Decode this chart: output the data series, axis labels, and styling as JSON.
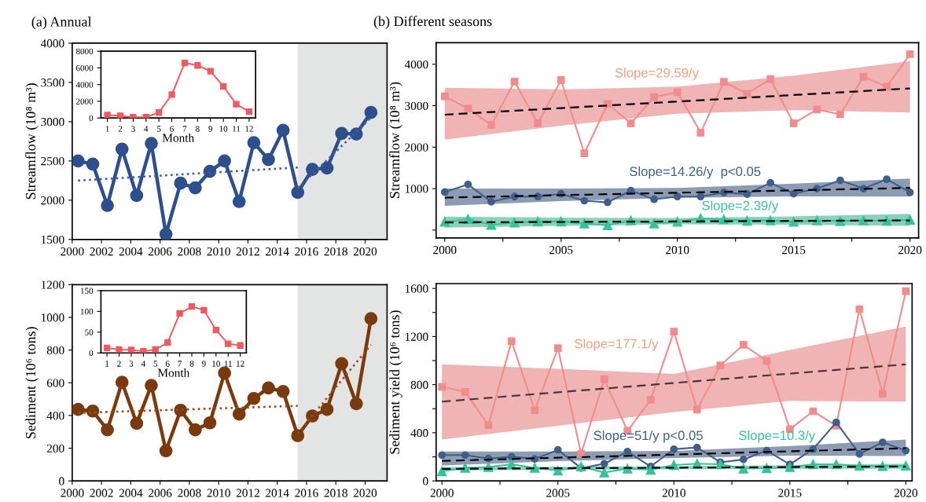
{
  "chart_data": [
    {
      "type": "line",
      "title": "(a) Annual",
      "ylabel": "Streamflow (10⁸ m³)",
      "x": [
        2000,
        2001,
        2002,
        2003,
        2004,
        2005,
        2006,
        2007,
        2008,
        2009,
        2010,
        2011,
        2012,
        2013,
        2014,
        2015,
        2016,
        2017,
        2018,
        2019,
        2020
      ],
      "series": [
        {
          "color": "#2d4f8e",
          "marker": "circle",
          "line_style": "solid",
          "values": [
            2500,
            2460,
            1933,
            2650,
            2060,
            2723,
            1567,
            2217,
            2157,
            2367,
            2500,
            1983,
            2733,
            2517,
            2890,
            2100,
            2393,
            2410,
            2850,
            2843,
            3117
          ]
        },
        {
          "type": "line",
          "color": "#3f64a0",
          "marker": "none",
          "line_style": "dotted",
          "x": [
            2000,
            2015
          ],
          "values": [
            2250,
            2417
          ]
        },
        {
          "type": "line",
          "color": "#3f64a0",
          "marker": "none",
          "line_style": "dotted",
          "x": [
            2015,
            2020
          ],
          "values": [
            2150,
            3050
          ]
        }
      ],
      "bands": [
        {
          "axis": "x",
          "from": 2015,
          "to": 2021.1,
          "color": "#e3e5e4"
        }
      ],
      "xlim": [
        1999.6,
        2021.1
      ],
      "xticks": [
        {
          "value": 1999.6,
          "label": "2000"
        },
        {
          "value": 2001.6,
          "label": "2002"
        },
        {
          "value": 2003.6,
          "label": "2004"
        },
        {
          "value": 2005.6,
          "label": "2006"
        },
        {
          "value": 2007.6,
          "label": "2008"
        },
        {
          "value": 2009.6,
          "label": "2010"
        },
        {
          "value": 2011.6,
          "label": "2012"
        },
        {
          "value": 2013.6,
          "label": "2014"
        },
        {
          "value": 2015.6,
          "label": "2016"
        },
        {
          "value": 2017.6,
          "label": "2018"
        },
        {
          "value": 2019.6,
          "label": "2020"
        }
      ],
      "ylim": [
        1500,
        4000
      ],
      "yticks": [
        1500,
        2000,
        2500,
        3000,
        3500,
        4000
      ],
      "grid": false,
      "legend": false
    },
    {
      "type": "line",
      "xlabel": "Month",
      "categories": [
        "1",
        "2",
        "3",
        "4",
        "5",
        "6",
        "7",
        "8",
        "9",
        "10",
        "11",
        "12"
      ],
      "series": [
        {
          "color": "#f0595e",
          "marker": "square",
          "line_style": "solid",
          "values": [
            350,
            250,
            100,
            100,
            650,
            2800,
            6600,
            6300,
            5600,
            3800,
            1650,
            750
          ]
        }
      ],
      "ylim": [
        0,
        8000
      ],
      "yticks": [
        0,
        2000,
        4000,
        6000,
        8000
      ],
      "grid": false,
      "legend": false
    },
    {
      "type": "line",
      "ylabel": "Sediment (10⁶ tons)",
      "x": [
        2000,
        2001,
        2002,
        2003,
        2004,
        2005,
        2006,
        2007,
        2008,
        2009,
        2010,
        2011,
        2012,
        2013,
        2014,
        2015,
        2016,
        2017,
        2018,
        2019,
        2020
      ],
      "series": [
        {
          "color": "#7b3a0e",
          "marker": "circle",
          "line_style": "solid",
          "values": [
            437,
            427,
            312,
            603,
            352,
            584,
            184,
            432,
            312,
            355,
            659,
            408,
            504,
            568,
            547,
            277,
            397,
            437,
            717,
            472,
            992
          ]
        },
        {
          "type": "line",
          "color": "#9a4f1e",
          "marker": "none",
          "line_style": "dotted",
          "x": [
            2000,
            2015
          ],
          "values": [
            416,
            459
          ]
        },
        {
          "type": "line",
          "color": "#9a4f1e",
          "marker": "none",
          "line_style": "dotted",
          "x": [
            2015,
            2020
          ],
          "values": [
            290,
            832
          ]
        }
      ],
      "bands": [
        {
          "axis": "x",
          "from": 2015,
          "to": 2021.1,
          "color": "#e3e5e4"
        }
      ],
      "xlim": [
        1999.6,
        2021.1
      ],
      "xticks": [
        {
          "value": 1999.6,
          "label": "2000"
        },
        {
          "value": 2001.6,
          "label": "2002"
        },
        {
          "value": 2003.6,
          "label": "2004"
        },
        {
          "value": 2005.6,
          "label": "2006"
        },
        {
          "value": 2007.6,
          "label": "2008"
        },
        {
          "value": 2009.6,
          "label": "2010"
        },
        {
          "value": 2011.6,
          "label": "2012"
        },
        {
          "value": 2013.6,
          "label": "2014"
        },
        {
          "value": 2015.6,
          "label": "2016"
        },
        {
          "value": 2017.6,
          "label": "2018"
        },
        {
          "value": 2019.6,
          "label": "2020"
        }
      ],
      "ylim": [
        0,
        1200
      ],
      "yticks": [
        0,
        200,
        400,
        600,
        800,
        1000,
        1200
      ],
      "grid": false,
      "legend": false
    },
    {
      "type": "line",
      "xlabel": "Month",
      "categories": [
        "1",
        "2",
        "3",
        "4",
        "5",
        "6",
        "7",
        "8",
        "9",
        "10",
        "11",
        "12"
      ],
      "series": [
        {
          "color": "#f0595e",
          "marker": "square",
          "line_style": "solid",
          "values": [
            12,
            8,
            7,
            4,
            8,
            25,
            95,
            112,
            103,
            55,
            22,
            18
          ]
        }
      ],
      "ylim": [
        0,
        150
      ],
      "yticks": [
        0,
        50,
        100,
        150
      ],
      "grid": false,
      "legend": false
    },
    {
      "type": "line",
      "title": "(b) Different seasons",
      "ylabel": "Streamflow (10⁸ m³)",
      "x": [
        2000,
        2001,
        2002,
        2003,
        2004,
        2005,
        2006,
        2007,
        2008,
        2009,
        2010,
        2011,
        2012,
        2013,
        2014,
        2015,
        2016,
        2017,
        2018,
        2019,
        2020
      ],
      "series": [
        {
          "color": "#f28c8c",
          "marker": "square",
          "line_style": "solid",
          "values": [
            3225,
            2933,
            2533,
            3583,
            2575,
            3617,
            1850,
            3042,
            2575,
            3208,
            3325,
            2350,
            3575,
            3292,
            3642,
            2575,
            2908,
            2792,
            3700,
            3458,
            4242
          ]
        },
        {
          "color": "#3e5f8a",
          "marker": "circle",
          "line_style": "solid",
          "values": [
            917,
            1100,
            683,
            808,
            808,
            875,
            708,
            667,
            950,
            742,
            808,
            808,
            908,
            867,
            1142,
            875,
            1000,
            1200,
            1000,
            1225,
            908
          ]
        },
        {
          "color": "#35c29c",
          "marker": "triangle",
          "line_style": "solid",
          "values": [
            200,
            267,
            125,
            183,
            208,
            208,
            158,
            117,
            233,
            158,
            200,
            283,
            258,
            225,
            233,
            200,
            233,
            217,
            233,
            225,
            250
          ]
        },
        {
          "type": "line",
          "color": "#000000",
          "marker": "none",
          "line_style": "dashed",
          "x": [
            2000,
            2005,
            2010,
            2015,
            2020
          ],
          "values": [
            2783,
            2942,
            3100,
            3258,
            3417
          ],
          "lower": [
            2183,
            2517,
            2808,
            2892,
            2833
          ],
          "upper": [
            3433,
            3392,
            3458,
            3725,
            4075
          ]
        },
        {
          "type": "line",
          "color": "#000000",
          "marker": "none",
          "line_style": "dashed",
          "x": [
            2000,
            2005,
            2010,
            2015,
            2020
          ],
          "values": [
            783,
            842,
            900,
            958,
            1017
          ],
          "lower": [
            583,
            700,
            780,
            810,
            808
          ],
          "upper": [
            1000,
            1000,
            1017,
            1120,
            1242
          ]
        },
        {
          "type": "line",
          "color": "#000000",
          "marker": "none",
          "line_style": "dashed",
          "x": [
            2000,
            2005,
            2010,
            2015,
            2020
          ],
          "values": [
            183,
            196,
            208,
            221,
            233
          ],
          "lower": [
            58,
            100,
            140,
            130,
            100
          ],
          "upper": [
            325,
            300,
            290,
            330,
            392
          ]
        }
      ],
      "annotations": [
        "Slope=29.59/y",
        "Slope=14.26/y  p<0.05",
        "Slope=2.39/y"
      ],
      "xlim": [
        1999.63,
        2020.37
      ],
      "xticks": [
        2000,
        {
          "value": 2002.5,
          "label": null
        },
        2005,
        {
          "value": 2007.5,
          "label": null
        },
        2010,
        {
          "value": 2012.5,
          "label": null
        },
        2015,
        {
          "value": 2017.5,
          "label": null
        },
        2020
      ],
      "ylim": [
        -190,
        4520
      ],
      "yticks": [
        {
          "value": 0,
          "label": null
        },
        1000,
        2000,
        3000,
        4000
      ],
      "grid": false,
      "legend": false
    },
    {
      "type": "line",
      "ylabel": "Sediment yield (10⁶ tons)",
      "x": [
        2000,
        2001,
        2002,
        2003,
        2004,
        2005,
        2006,
        2007,
        2008,
        2009,
        2010,
        2011,
        2012,
        2013,
        2014,
        2015,
        2016,
        2017,
        2018,
        2019,
        2020
      ],
      "series": [
        {
          "color": "#f28c8c",
          "marker": "square",
          "line_style": "solid",
          "values": [
            783,
            740,
            464,
            1161,
            588,
            1104,
            226,
            846,
            416,
            674,
            1241,
            593,
            960,
            1132,
            998,
            430,
            579,
            459,
            1428,
            725,
            1577
          ]
        },
        {
          "color": "#3e5f8a",
          "marker": "circle",
          "line_style": "solid",
          "values": [
            215,
            215,
            186,
            201,
            183,
            258,
            106,
            143,
            244,
            120,
            264,
            278,
            155,
            178,
            252,
            138,
            264,
            487,
            224,
            321,
            252
          ]
        },
        {
          "color": "#35c29c",
          "marker": "triangle",
          "line_style": "solid",
          "values": [
            80,
            109,
            115,
            138,
            109,
            86,
            120,
            69,
            103,
            92,
            132,
            143,
            138,
            103,
            106,
            115,
            138,
            138,
            126,
            123,
            126
          ]
        },
        {
          "type": "line",
          "color": "#4a3838",
          "marker": "none",
          "line_style": "dashed",
          "x": [
            2000,
            2005,
            2010,
            2015,
            2020
          ],
          "values": [
            659,
            737,
            814,
            892,
            969
          ],
          "lower": [
            344,
            459,
            573,
            665,
            659
          ],
          "upper": [
            969,
            932,
            889,
            1089,
            1284
          ]
        },
        {
          "type": "line",
          "color": "#000000",
          "marker": "none",
          "line_style": "dashed",
          "x": [
            2000,
            2005,
            2010,
            2015,
            2020
          ],
          "values": [
            166,
            193,
            219,
            246,
            272
          ],
          "lower": [
            129,
            165,
            190,
            210,
            206
          ],
          "upper": [
            244,
            244,
            250,
            290,
            344
          ]
        },
        {
          "type": "line",
          "color": "#000000",
          "marker": "none",
          "line_style": "dashed",
          "x": [
            2000,
            2005,
            2010,
            2015,
            2020
          ],
          "values": [
            100,
            105,
            110,
            115,
            120
          ],
          "lower": [
            86,
            92,
            98,
            100,
            100
          ],
          "upper": [
            115,
            118,
            122,
            130,
            143
          ]
        }
      ],
      "annotations": [
        "Slope=177.1/y",
        "Slope=51/y p<0.05",
        "Slope=10.3/y"
      ],
      "xlim": [
        1999.75,
        2020.27
      ],
      "xticks": [
        2000,
        {
          "value": 2002.5,
          "label": null
        },
        2005,
        {
          "value": 2007.5,
          "label": null
        },
        2010,
        {
          "value": 2012.5,
          "label": null
        },
        2015,
        {
          "value": 2017.5,
          "label": null
        },
        2020
      ],
      "ylim": [
        0,
        1640
      ],
      "yticks": [
        0,
        {
          "value": 200,
          "label": null
        },
        400,
        {
          "value": 600,
          "label": null
        },
        800,
        {
          "value": 1000,
          "label": null
        },
        1200,
        {
          "value": 1400,
          "label": null
        },
        1600
      ],
      "grid": false,
      "legend": false
    }
  ]
}
